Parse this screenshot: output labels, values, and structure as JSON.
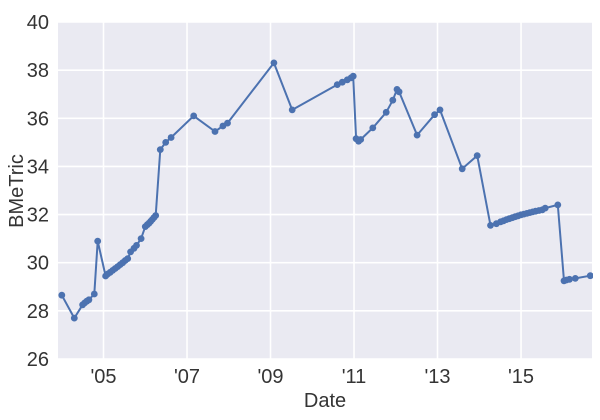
{
  "figure": {
    "xlabel": "Date",
    "ylabel": "BMeTric"
  },
  "style": {
    "figure_bg": "#ffffff",
    "plot_bg": "#eaeaf2",
    "grid_color": "#ffffff",
    "line_color": "#4c72b0",
    "marker_color": "#4c72b0",
    "tick_text_color": "#343434"
  },
  "chart_data": {
    "type": "line",
    "title": "",
    "xlabel": "Date",
    "ylabel": "BMeTric",
    "x_unit": "year (fractional, '04=2004)",
    "xlim": [
      2003.91,
      2016.7
    ],
    "ylim": [
      26,
      40
    ],
    "x_ticks": [
      2005,
      2007,
      2009,
      2011,
      2013,
      2015
    ],
    "x_tick_labels": [
      "'05",
      "'07",
      "'09",
      "'11",
      "'13",
      "'15"
    ],
    "y_ticks": [
      26,
      28,
      30,
      32,
      34,
      36,
      38,
      40
    ],
    "y_tick_labels": [
      "26",
      "28",
      "30",
      "32",
      "34",
      "36",
      "38",
      "40"
    ],
    "grid": true,
    "legend_position": "none",
    "marker": "circle",
    "points": [
      [
        2004.0,
        28.65
      ],
      [
        2004.3,
        27.7
      ],
      [
        2004.5,
        28.25
      ],
      [
        2004.55,
        28.33
      ],
      [
        2004.6,
        28.4
      ],
      [
        2004.65,
        28.46
      ],
      [
        2004.78,
        28.7
      ],
      [
        2004.86,
        30.9
      ],
      [
        2005.05,
        29.45
      ],
      [
        2005.1,
        29.53
      ],
      [
        2005.16,
        29.6
      ],
      [
        2005.22,
        29.68
      ],
      [
        2005.28,
        29.76
      ],
      [
        2005.34,
        29.84
      ],
      [
        2005.4,
        29.92
      ],
      [
        2005.46,
        30.0
      ],
      [
        2005.52,
        30.09
      ],
      [
        2005.58,
        30.17
      ],
      [
        2005.65,
        30.45
      ],
      [
        2005.73,
        30.6
      ],
      [
        2005.79,
        30.72
      ],
      [
        2005.9,
        31.0
      ],
      [
        2006.0,
        31.5
      ],
      [
        2006.05,
        31.58
      ],
      [
        2006.09,
        31.64
      ],
      [
        2006.13,
        31.72
      ],
      [
        2006.17,
        31.8
      ],
      [
        2006.21,
        31.88
      ],
      [
        2006.25,
        31.96
      ],
      [
        2006.36,
        34.7
      ],
      [
        2006.49,
        35.0
      ],
      [
        2006.62,
        35.2
      ],
      [
        2007.16,
        36.1
      ],
      [
        2007.67,
        35.45
      ],
      [
        2007.86,
        35.68
      ],
      [
        2007.97,
        35.8
      ],
      [
        2009.08,
        38.3
      ],
      [
        2009.52,
        36.35
      ],
      [
        2010.6,
        37.4
      ],
      [
        2010.72,
        37.5
      ],
      [
        2010.84,
        37.6
      ],
      [
        2010.93,
        37.68
      ],
      [
        2010.98,
        37.75
      ],
      [
        2011.05,
        35.15
      ],
      [
        2011.11,
        35.05
      ],
      [
        2011.16,
        35.12
      ],
      [
        2011.45,
        35.6
      ],
      [
        2011.77,
        36.25
      ],
      [
        2011.93,
        36.75
      ],
      [
        2012.03,
        37.2
      ],
      [
        2012.08,
        37.1
      ],
      [
        2012.51,
        35.3
      ],
      [
        2012.93,
        36.15
      ],
      [
        2013.06,
        36.35
      ],
      [
        2013.59,
        33.9
      ],
      [
        2013.95,
        34.45
      ],
      [
        2014.27,
        31.55
      ],
      [
        2014.41,
        31.62
      ],
      [
        2014.51,
        31.7
      ],
      [
        2014.58,
        31.74
      ],
      [
        2014.65,
        31.79
      ],
      [
        2014.72,
        31.83
      ],
      [
        2014.79,
        31.87
      ],
      [
        2014.86,
        31.91
      ],
      [
        2014.93,
        31.95
      ],
      [
        2015.0,
        31.99
      ],
      [
        2015.07,
        32.02
      ],
      [
        2015.14,
        32.05
      ],
      [
        2015.21,
        32.08
      ],
      [
        2015.28,
        32.11
      ],
      [
        2015.35,
        32.14
      ],
      [
        2015.43,
        32.17
      ],
      [
        2015.51,
        32.2
      ],
      [
        2015.58,
        32.27
      ],
      [
        2015.88,
        32.4
      ],
      [
        2016.03,
        29.25
      ],
      [
        2016.09,
        29.28
      ],
      [
        2016.16,
        29.31
      ],
      [
        2016.3,
        29.35
      ],
      [
        2016.66,
        29.46
      ]
    ]
  }
}
